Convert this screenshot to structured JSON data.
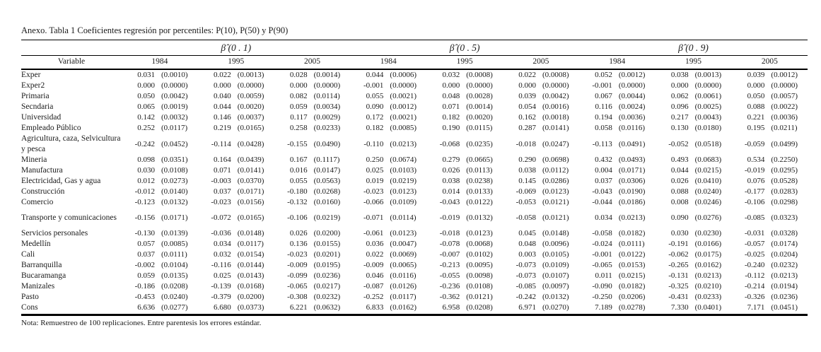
{
  "title": "Anexo. Tabla 1 Coeficientes regresión por percentiles: P(10), P(50) y P(90)",
  "note": "Nota: Remuestreo de 100 replicaciones. Entre parentesis los errores estándar.",
  "header": {
    "variable_label": "Variable",
    "groups": [
      {
        "label": "β̂ (0 . 1)",
        "years": [
          "1984",
          "1995",
          "2005"
        ]
      },
      {
        "label": "β̂ (0 . 5)",
        "years": [
          "1984",
          "1995",
          "2005"
        ]
      },
      {
        "label": "β̂ (0 . 9)",
        "years": [
          "1984",
          "1995",
          "2005"
        ]
      }
    ]
  },
  "rows": [
    {
      "variable": "Exper",
      "gap_above": false,
      "cells": [
        [
          "0.031",
          "(0.0010)"
        ],
        [
          "0.022",
          "(0.0013)"
        ],
        [
          "0.028",
          "(0.0014)"
        ],
        [
          "0.044",
          "(0.0006)"
        ],
        [
          "0.032",
          "(0.0008)"
        ],
        [
          "0.022",
          "(0.0008)"
        ],
        [
          "0.052",
          "(0.0012)"
        ],
        [
          "0.038",
          "(0.0013)"
        ],
        [
          "0.039",
          "(0.0012)"
        ]
      ]
    },
    {
      "variable": "Exper2",
      "gap_above": false,
      "cells": [
        [
          "0.000",
          "(0.0000)"
        ],
        [
          "0.000",
          "(0.0000)"
        ],
        [
          "0.000",
          "(0.0000)"
        ],
        [
          "-0.001",
          "(0.0000)"
        ],
        [
          "0.000",
          "(0.0000)"
        ],
        [
          "0.000",
          "(0.0000)"
        ],
        [
          "-0.001",
          "(0.0000)"
        ],
        [
          "0.000",
          "(0.0000)"
        ],
        [
          "0.000",
          "(0.0000)"
        ]
      ]
    },
    {
      "variable": "Primaria",
      "gap_above": false,
      "cells": [
        [
          "0.050",
          "(0.0042)"
        ],
        [
          "0.040",
          "(0.0059)"
        ],
        [
          "0.082",
          "(0.0114)"
        ],
        [
          "0.055",
          "(0.0021)"
        ],
        [
          "0.048",
          "(0.0028)"
        ],
        [
          "0.039",
          "(0.0042)"
        ],
        [
          "0.067",
          "(0.0044)"
        ],
        [
          "0.062",
          "(0.0061)"
        ],
        [
          "0.050",
          "(0.0057)"
        ]
      ]
    },
    {
      "variable": "Secndaria",
      "gap_above": false,
      "cells": [
        [
          "0.065",
          "(0.0019)"
        ],
        [
          "0.044",
          "(0.0020)"
        ],
        [
          "0.059",
          "(0.0034)"
        ],
        [
          "0.090",
          "(0.0012)"
        ],
        [
          "0.071",
          "(0.0014)"
        ],
        [
          "0.054",
          "(0.0016)"
        ],
        [
          "0.116",
          "(0.0024)"
        ],
        [
          "0.096",
          "(0.0025)"
        ],
        [
          "0.088",
          "(0.0022)"
        ]
      ]
    },
    {
      "variable": "Universidad",
      "gap_above": false,
      "cells": [
        [
          "0.142",
          "(0.0032)"
        ],
        [
          "0.146",
          "(0.0037)"
        ],
        [
          "0.117",
          "(0.0029)"
        ],
        [
          "0.172",
          "(0.0021)"
        ],
        [
          "0.182",
          "(0.0020)"
        ],
        [
          "0.162",
          "(0.0018)"
        ],
        [
          "0.194",
          "(0.0036)"
        ],
        [
          "0.217",
          "(0.0043)"
        ],
        [
          "0.221",
          "(0.0036)"
        ]
      ]
    },
    {
      "variable": "Empleado Público",
      "gap_above": false,
      "cells": [
        [
          "0.252",
          "(0.0117)"
        ],
        [
          "0.219",
          "(0.0165)"
        ],
        [
          "0.258",
          "(0.0233)"
        ],
        [
          "0.182",
          "(0.0085)"
        ],
        [
          "0.190",
          "(0.0115)"
        ],
        [
          "0.287",
          "(0.0141)"
        ],
        [
          "0.058",
          "(0.0116)"
        ],
        [
          "0.130",
          "(0.0180)"
        ],
        [
          "0.195",
          "(0.0211)"
        ]
      ]
    },
    {
      "variable": "Agricultura, caza, Selvicultura y pesca",
      "gap_above": false,
      "cells": [
        [
          "-0.242",
          "(0.0452)"
        ],
        [
          "-0.114",
          "(0.0428)"
        ],
        [
          "-0.155",
          "(0.0490)"
        ],
        [
          "-0.110",
          "(0.0213)"
        ],
        [
          "-0.068",
          "(0.0235)"
        ],
        [
          "-0.018",
          "(0.0247)"
        ],
        [
          "-0.113",
          "(0.0491)"
        ],
        [
          "-0.052",
          "(0.0518)"
        ],
        [
          "-0.059",
          "(0.0499)"
        ]
      ]
    },
    {
      "variable": "Mineria",
      "gap_above": false,
      "cells": [
        [
          "0.098",
          "(0.0351)"
        ],
        [
          "0.164",
          "(0.0439)"
        ],
        [
          "0.167",
          "(0.1117)"
        ],
        [
          "0.250",
          "(0.0674)"
        ],
        [
          "0.279",
          "(0.0665)"
        ],
        [
          "0.290",
          "(0.0698)"
        ],
        [
          "0.432",
          "(0.0493)"
        ],
        [
          "0.493",
          "(0.0683)"
        ],
        [
          "0.534",
          "(0.2250)"
        ]
      ]
    },
    {
      "variable": "Manufactura",
      "gap_above": false,
      "cells": [
        [
          "0.030",
          "(0.0108)"
        ],
        [
          "0.071",
          "(0.0141)"
        ],
        [
          "0.016",
          "(0.0147)"
        ],
        [
          "0.025",
          "(0.0103)"
        ],
        [
          "0.026",
          "(0.0113)"
        ],
        [
          "0.038",
          "(0.0112)"
        ],
        [
          "0.004",
          "(0.0171)"
        ],
        [
          "0.044",
          "(0.0215)"
        ],
        [
          "-0.019",
          "(0.0295)"
        ]
      ]
    },
    {
      "variable": "Electricidad, Gas y agua",
      "gap_above": false,
      "cells": [
        [
          "0.012",
          "(0.0273)"
        ],
        [
          "-0.003",
          "(0.0370)"
        ],
        [
          "0.055",
          "(0.0563)"
        ],
        [
          "0.019",
          "(0.0219)"
        ],
        [
          "0.038",
          "(0.0238)"
        ],
        [
          "0.145",
          "(0.0286)"
        ],
        [
          "0.037",
          "(0.0306)"
        ],
        [
          "0.026",
          "(0.0410)"
        ],
        [
          "0.076",
          "(0.0528)"
        ]
      ]
    },
    {
      "variable": "Construcción",
      "gap_above": false,
      "cells": [
        [
          "-0.012",
          "(0.0140)"
        ],
        [
          "0.037",
          "(0.0171)"
        ],
        [
          "-0.180",
          "(0.0268)"
        ],
        [
          "-0.023",
          "(0.0123)"
        ],
        [
          "0.014",
          "(0.0133)"
        ],
        [
          "-0.069",
          "(0.0123)"
        ],
        [
          "-0.043",
          "(0.0190)"
        ],
        [
          "0.088",
          "(0.0240)"
        ],
        [
          "-0.177",
          "(0.0283)"
        ]
      ]
    },
    {
      "variable": "Comercio",
      "gap_above": false,
      "cells": [
        [
          "-0.123",
          "(0.0132)"
        ],
        [
          "-0.023",
          "(0.0156)"
        ],
        [
          "-0.132",
          "(0.0160)"
        ],
        [
          "-0.066",
          "(0.0109)"
        ],
        [
          "-0.043",
          "(0.0122)"
        ],
        [
          "-0.053",
          "(0.0121)"
        ],
        [
          "-0.044",
          "(0.0186)"
        ],
        [
          "0.008",
          "(0.0246)"
        ],
        [
          "-0.106",
          "(0.0298)"
        ]
      ]
    },
    {
      "variable": "Transporte y comunicaciones",
      "gap_above": true,
      "cells": [
        [
          "-0.156",
          "(0.0171)"
        ],
        [
          "-0.072",
          "(0.0165)"
        ],
        [
          "-0.106",
          "(0.0219)"
        ],
        [
          "-0.071",
          "(0.0114)"
        ],
        [
          "-0.019",
          "(0.0132)"
        ],
        [
          "-0.058",
          "(0.0121)"
        ],
        [
          "0.034",
          "(0.0213)"
        ],
        [
          "0.090",
          "(0.0276)"
        ],
        [
          "-0.085",
          "(0.0323)"
        ]
      ]
    },
    {
      "variable": "Servicios personales",
      "gap_above": true,
      "cells": [
        [
          "-0.130",
          "(0.0139)"
        ],
        [
          "-0.036",
          "(0.0148)"
        ],
        [
          "0.026",
          "(0.0200)"
        ],
        [
          "-0.061",
          "(0.0123)"
        ],
        [
          "-0.018",
          "(0.0123)"
        ],
        [
          "0.045",
          "(0.0148)"
        ],
        [
          "-0.058",
          "(0.0182)"
        ],
        [
          "0.030",
          "(0.0230)"
        ],
        [
          "-0.031",
          "(0.0328)"
        ]
      ]
    },
    {
      "variable": "Medellín",
      "gap_above": false,
      "cells": [
        [
          "0.057",
          "(0.0085)"
        ],
        [
          "0.034",
          "(0.0117)"
        ],
        [
          "0.136",
          "(0.0155)"
        ],
        [
          "0.036",
          "(0.0047)"
        ],
        [
          "-0.078",
          "(0.0068)"
        ],
        [
          "0.048",
          "(0.0096)"
        ],
        [
          "-0.024",
          "(0.0111)"
        ],
        [
          "-0.191",
          "(0.0166)"
        ],
        [
          "-0.057",
          "(0.0174)"
        ]
      ]
    },
    {
      "variable": "Cali",
      "gap_above": false,
      "cells": [
        [
          "0.037",
          "(0.0111)"
        ],
        [
          "0.032",
          "(0.0154)"
        ],
        [
          "-0.023",
          "(0.0201)"
        ],
        [
          "0.022",
          "(0.0069)"
        ],
        [
          "-0.007",
          "(0.0102)"
        ],
        [
          "0.003",
          "(0.0105)"
        ],
        [
          "-0.001",
          "(0.0122)"
        ],
        [
          "-0.062",
          "(0.0175)"
        ],
        [
          "-0.025",
          "(0.0204)"
        ]
      ]
    },
    {
      "variable": "Barranquilla",
      "gap_above": false,
      "cells": [
        [
          "-0.002",
          "(0.0104)"
        ],
        [
          "-0.116",
          "(0.0144)"
        ],
        [
          "-0.009",
          "(0.0195)"
        ],
        [
          "-0.009",
          "(0.0065)"
        ],
        [
          "-0.213",
          "(0.0095)"
        ],
        [
          "-0.073",
          "(0.0109)"
        ],
        [
          "-0.065",
          "(0.0153)"
        ],
        [
          "-0.265",
          "(0.0162)"
        ],
        [
          "-0.240",
          "(0.0232)"
        ]
      ]
    },
    {
      "variable": "Bucaramanga",
      "gap_above": false,
      "cells": [
        [
          "0.059",
          "(0.0135)"
        ],
        [
          "0.025",
          "(0.0143)"
        ],
        [
          "-0.099",
          "(0.0236)"
        ],
        [
          "0.046",
          "(0.0116)"
        ],
        [
          "-0.055",
          "(0.0098)"
        ],
        [
          "-0.073",
          "(0.0107)"
        ],
        [
          "0.011",
          "(0.0215)"
        ],
        [
          "-0.131",
          "(0.0213)"
        ],
        [
          "-0.112",
          "(0.0213)"
        ]
      ]
    },
    {
      "variable": "Manizales",
      "gap_above": false,
      "cells": [
        [
          "-0.186",
          "(0.0208)"
        ],
        [
          "-0.139",
          "(0.0168)"
        ],
        [
          "-0.065",
          "(0.0217)"
        ],
        [
          "-0.087",
          "(0.0126)"
        ],
        [
          "-0.236",
          "(0.0108)"
        ],
        [
          "-0.085",
          "(0.0097)"
        ],
        [
          "-0.090",
          "(0.0182)"
        ],
        [
          "-0.325",
          "(0.0210)"
        ],
        [
          "-0.214",
          "(0.0194)"
        ]
      ]
    },
    {
      "variable": "Pasto",
      "gap_above": false,
      "cells": [
        [
          "-0.453",
          "(0.0240)"
        ],
        [
          "-0.379",
          "(0.0200)"
        ],
        [
          "-0.308",
          "(0.0232)"
        ],
        [
          "-0.252",
          "(0.0117)"
        ],
        [
          "-0.362",
          "(0.0121)"
        ],
        [
          "-0.242",
          "(0.0132)"
        ],
        [
          "-0.250",
          "(0.0206)"
        ],
        [
          "-0.431",
          "(0.0233)"
        ],
        [
          "-0.326",
          "(0.0236)"
        ]
      ]
    },
    {
      "variable": "Cons",
      "gap_above": false,
      "cells": [
        [
          "6.636",
          "(0.0277)"
        ],
        [
          "6.680",
          "(0.0373)"
        ],
        [
          "6.221",
          "(0.0632)"
        ],
        [
          "6.833",
          "(0.0162)"
        ],
        [
          "6.958",
          "(0.0208)"
        ],
        [
          "6.971",
          "(0.0270)"
        ],
        [
          "7.189",
          "(0.0278)"
        ],
        [
          "7.330",
          "(0.0401)"
        ],
        [
          "7.171",
          "(0.0451)"
        ]
      ]
    }
  ]
}
